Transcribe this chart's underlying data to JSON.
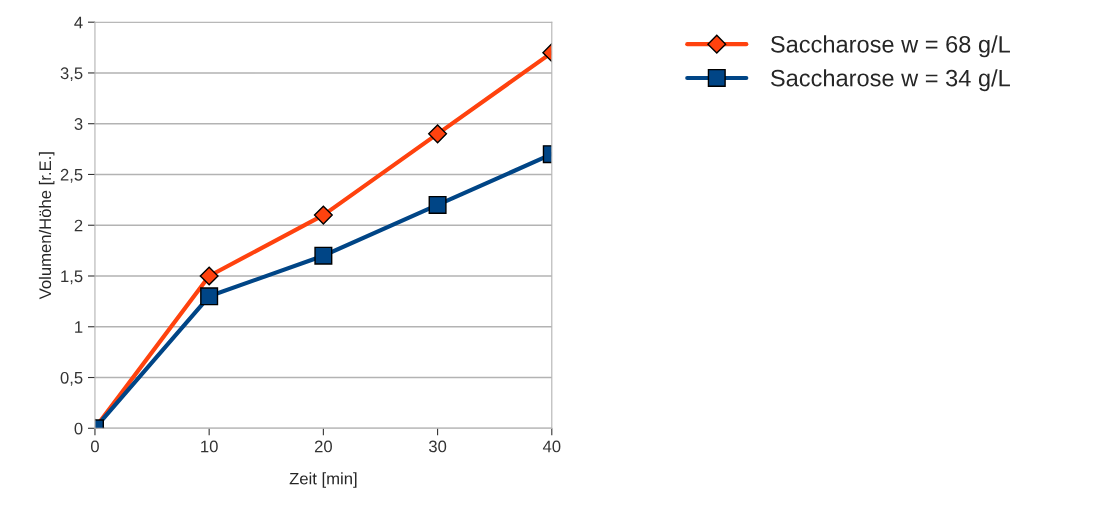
{
  "chart_data": {
    "type": "line",
    "xlabel": "Zeit [min]",
    "ylabel": "Volumen/Höhe [r.E.]",
    "x": [
      0,
      10,
      20,
      30,
      40
    ],
    "series": [
      {
        "name": "Saccharose w = 68 g/L",
        "color": "#ff420e",
        "marker": "diamond",
        "values": [
          0,
          1.5,
          2.1,
          2.9,
          3.7
        ]
      },
      {
        "name": "Saccharose w = 34 g/L",
        "color": "#004586",
        "marker": "square",
        "values": [
          0,
          1.3,
          1.7,
          2.2,
          2.7
        ]
      }
    ],
    "xlim": [
      0,
      40
    ],
    "xticks": [
      0,
      10,
      20,
      30,
      40
    ],
    "ylim": [
      0,
      4
    ],
    "yticks": [
      0,
      {
        "value": 0.5,
        "label": "0,5"
      },
      1,
      {
        "value": 1.5,
        "label": "1,5"
      },
      2,
      {
        "value": 2.5,
        "label": "2,5"
      },
      3,
      {
        "value": 3.5,
        "label": "3,5"
      },
      4
    ],
    "grid": "y",
    "legend": "top right",
    "line_style": "solid"
  }
}
